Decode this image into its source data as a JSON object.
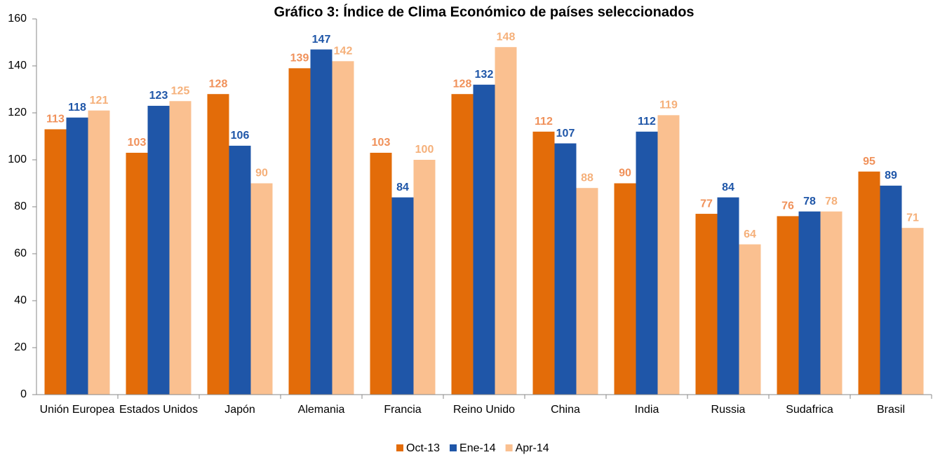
{
  "chart_data": {
    "type": "bar",
    "title": "Gráfico 3: Índice de Clima Económico de países seleccionados",
    "categories": [
      "Unión Europea",
      "Estados Unidos",
      "Japón",
      "Alemania",
      "Francia",
      "Reino Unido",
      "China",
      "India",
      "Russia",
      "Sudafrica",
      "Brasil"
    ],
    "series": [
      {
        "name": "Oct-13",
        "color": "#e36c09",
        "values": [
          113,
          103,
          128,
          139,
          103,
          128,
          112,
          90,
          77,
          76,
          95
        ]
      },
      {
        "name": "Ene-14",
        "color": "#1f56a8",
        "values": [
          118,
          123,
          106,
          147,
          84,
          132,
          107,
          112,
          84,
          78,
          89
        ]
      },
      {
        "name": "Apr-14",
        "color": "#fac090",
        "values": [
          121,
          125,
          90,
          142,
          100,
          148,
          88,
          119,
          64,
          78,
          71
        ]
      }
    ],
    "ylim": [
      0,
      160
    ],
    "yticks": [
      0,
      20,
      40,
      60,
      80,
      100,
      120,
      140,
      160
    ],
    "legend": "bottom"
  }
}
